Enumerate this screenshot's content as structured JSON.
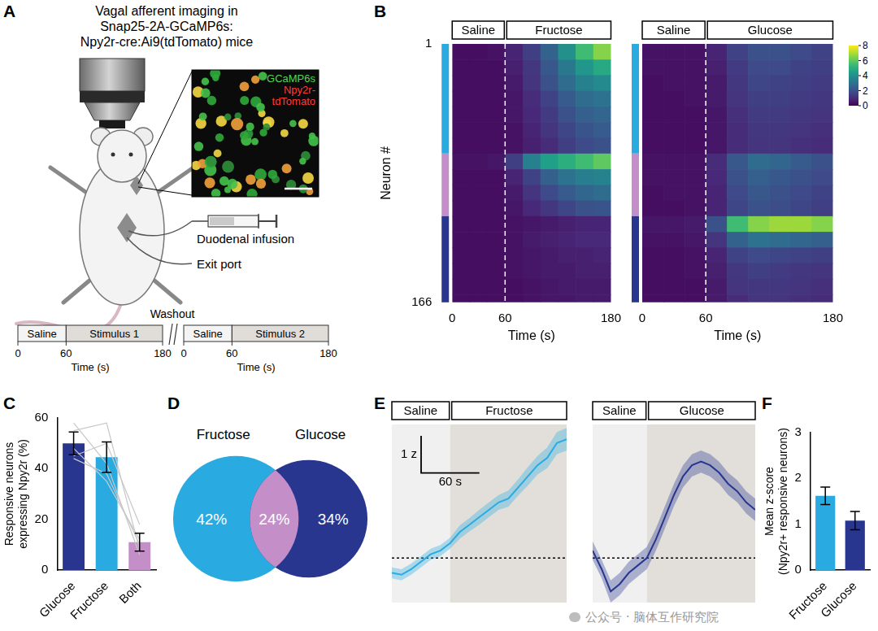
{
  "panel_a": {
    "panel": "A",
    "title": [
      "Vagal afferent imaging in",
      "Snap25-2A-GCaMP6s:",
      "Npy2r-cre:Ai9(tdTomato) mice"
    ],
    "inset_labels": [
      {
        "text": "GCaMP6s",
        "color": "#4cd94c"
      },
      {
        "text": "Npy2r-",
        "color": "#ff3a3a"
      },
      {
        "text": "tdTomato",
        "color": "#ff3a3a"
      }
    ],
    "infusion_label": "Duodenal infusion",
    "exit_label": "Exit port",
    "timeline": {
      "washout_label": "Washout",
      "xlabel": "Time (s)",
      "xlim": [
        0,
        180
      ],
      "xticks": [
        0,
        60,
        180
      ],
      "protocols": [
        [
          {
            "label": "Saline",
            "from": 0,
            "to": 60
          },
          {
            "label": "Stimulus 1",
            "from": 60,
            "to": 180
          }
        ],
        [
          {
            "label": "Saline",
            "from": 0,
            "to": 60
          },
          {
            "label": "Stimulus 2",
            "from": 60,
            "to": 180
          }
        ]
      ]
    }
  },
  "colorbar": {
    "range": [
      0,
      8
    ],
    "ticks": [
      0,
      2,
      4,
      6,
      8
    ]
  },
  "watermark": "公众号 · 脑体互作研究院",
  "chart_data": [
    {
      "panel": "B",
      "type": "heatmap",
      "epochs": [
        {
          "label": "Saline",
          "from": 0,
          "to": 60
        },
        {
          "label": "Fructose",
          "from": 60,
          "to": 180
        }
      ],
      "xlabel": "Time (s)",
      "ylabel": "Neuron #",
      "xlim": [
        0,
        180
      ],
      "xticks": [
        0,
        60,
        180
      ],
      "ylim": [
        1,
        166
      ],
      "yticks": [
        1,
        166
      ],
      "x_edges": [
        0,
        20,
        40,
        60,
        80,
        100,
        120,
        140,
        160,
        180
      ],
      "y_edges": [
        1,
        11,
        21,
        31,
        41,
        51,
        61,
        71,
        81,
        91,
        101,
        111,
        121,
        131,
        141,
        151,
        161,
        166
      ],
      "cells": [
        [
          0.3,
          0.3,
          0.4,
          0.8,
          1.5,
          2.5,
          4.0,
          5.5,
          6.5
        ],
        [
          0.3,
          0.3,
          0.3,
          0.7,
          1.3,
          2.2,
          3.2,
          4.2,
          4.8
        ],
        [
          0.3,
          0.3,
          0.3,
          0.6,
          1.2,
          2.0,
          2.8,
          3.5,
          3.8
        ],
        [
          0.3,
          0.3,
          0.3,
          0.5,
          1.0,
          1.6,
          2.3,
          2.8,
          3.0
        ],
        [
          0.3,
          0.3,
          0.3,
          0.5,
          0.9,
          1.4,
          2.0,
          2.4,
          2.6
        ],
        [
          0.3,
          0.3,
          0.3,
          0.4,
          0.8,
          1.2,
          1.7,
          2.1,
          2.3
        ],
        [
          0.3,
          0.3,
          0.3,
          0.4,
          0.7,
          1.0,
          1.5,
          1.8,
          2.0
        ],
        [
          0.4,
          0.4,
          0.5,
          1.5,
          3.5,
          4.5,
          5.0,
          5.5,
          6.0
        ],
        [
          0.3,
          0.3,
          0.3,
          0.8,
          1.6,
          2.4,
          3.0,
          3.4,
          3.6
        ],
        [
          0.3,
          0.3,
          0.3,
          0.6,
          1.2,
          1.8,
          2.3,
          2.6,
          2.8
        ],
        [
          0.3,
          0.3,
          0.3,
          0.5,
          0.9,
          1.3,
          1.7,
          2.0,
          2.1
        ],
        [
          0.3,
          0.3,
          0.3,
          0.4,
          0.5,
          0.6,
          0.7,
          0.8,
          0.8
        ],
        [
          0.3,
          0.3,
          0.3,
          0.4,
          0.6,
          0.7,
          0.8,
          0.9,
          0.9
        ],
        [
          0.3,
          0.3,
          0.3,
          0.4,
          0.5,
          0.6,
          0.7,
          0.7,
          0.8
        ],
        [
          0.3,
          0.3,
          0.3,
          0.4,
          0.5,
          0.6,
          0.6,
          0.7,
          0.7
        ],
        [
          0.3,
          0.3,
          0.3,
          0.3,
          0.4,
          0.5,
          0.6,
          0.6,
          0.6
        ],
        [
          0.3,
          0.3,
          0.3,
          0.3,
          0.4,
          0.5,
          0.5,
          0.6,
          0.6
        ]
      ],
      "row_groups": [
        {
          "from": 1,
          "to": 71,
          "color": "#29abe2"
        },
        {
          "from": 71,
          "to": 111,
          "color": "#c48fc8"
        },
        {
          "from": 111,
          "to": 166,
          "color": "#28368f"
        }
      ]
    },
    {
      "panel": "B",
      "type": "heatmap",
      "epochs": [
        {
          "label": "Saline",
          "from": 0,
          "to": 60
        },
        {
          "label": "Glucose",
          "from": 60,
          "to": 180
        }
      ],
      "xlabel": "Time (s)",
      "tick_labels": "x",
      "xlim": [
        0,
        180
      ],
      "xticks": [
        0,
        60,
        180
      ],
      "ylim": [
        1,
        166
      ],
      "x_edges": [
        0,
        20,
        40,
        60,
        80,
        100,
        120,
        140,
        160,
        180
      ],
      "y_edges": [
        1,
        11,
        21,
        31,
        41,
        51,
        61,
        71,
        81,
        91,
        101,
        111,
        121,
        131,
        141,
        151,
        161,
        166
      ],
      "cells": [
        [
          0.4,
          0.4,
          0.4,
          0.8,
          1.6,
          2.0,
          2.0,
          1.8,
          1.6
        ],
        [
          0.4,
          0.4,
          0.4,
          0.7,
          1.4,
          1.8,
          1.8,
          1.6,
          1.5
        ],
        [
          0.3,
          0.4,
          0.4,
          0.6,
          1.3,
          1.7,
          1.6,
          1.5,
          1.4
        ],
        [
          0.3,
          0.3,
          0.4,
          0.6,
          1.2,
          1.5,
          1.5,
          1.4,
          1.3
        ],
        [
          0.3,
          0.3,
          0.3,
          0.5,
          1.1,
          1.4,
          1.4,
          1.3,
          1.2
        ],
        [
          0.3,
          0.3,
          0.3,
          0.5,
          1.0,
          1.3,
          1.3,
          1.2,
          1.1
        ],
        [
          0.3,
          0.3,
          0.3,
          0.5,
          1.0,
          1.2,
          1.2,
          1.1,
          1.0
        ],
        [
          0.4,
          0.4,
          0.4,
          1.0,
          2.2,
          2.8,
          2.6,
          2.3,
          2.0
        ],
        [
          0.4,
          0.4,
          0.4,
          0.9,
          2.0,
          2.4,
          2.2,
          2.0,
          1.8
        ],
        [
          0.3,
          0.4,
          0.4,
          0.8,
          1.8,
          2.2,
          2.0,
          1.8,
          1.6
        ],
        [
          0.3,
          0.3,
          0.4,
          0.8,
          1.7,
          2.0,
          1.9,
          1.7,
          1.5
        ],
        [
          0.5,
          0.5,
          0.6,
          2.0,
          5.5,
          6.5,
          6.8,
          6.8,
          6.5
        ],
        [
          0.4,
          0.4,
          0.5,
          1.2,
          2.5,
          3.0,
          2.8,
          2.6,
          2.4
        ],
        [
          0.3,
          0.3,
          0.4,
          0.8,
          1.6,
          1.8,
          1.7,
          1.6,
          1.5
        ],
        [
          0.3,
          0.3,
          0.4,
          0.7,
          1.3,
          1.5,
          1.4,
          1.3,
          1.2
        ],
        [
          0.3,
          0.3,
          0.3,
          0.6,
          1.2,
          1.3,
          1.3,
          1.2,
          1.1
        ],
        [
          0.3,
          0.3,
          0.3,
          0.6,
          1.0,
          1.2,
          1.2,
          1.1,
          1.0
        ]
      ],
      "row_groups": [
        {
          "from": 1,
          "to": 71,
          "color": "#29abe2"
        },
        {
          "from": 71,
          "to": 111,
          "color": "#c48fc8"
        },
        {
          "from": 111,
          "to": 166,
          "color": "#28368f"
        }
      ]
    },
    {
      "panel": "C",
      "type": "bar",
      "categories": [
        "Glucose",
        "Fructose",
        "Both"
      ],
      "values": [
        50,
        44.5,
        11
      ],
      "errors": [
        4.5,
        6,
        3.5
      ],
      "colors": [
        "#28368f",
        "#29abe2",
        "#c48fc8"
      ],
      "ylabel": [
        "Responsive neurons",
        "expressing Npy2r (%)"
      ],
      "ylim": [
        0,
        60
      ],
      "yticks": [
        0,
        20,
        40,
        60
      ],
      "individual": {
        "color": "#c8c8c8",
        "values": [
          [
            55,
            58,
            8
          ],
          [
            48,
            35,
            12
          ],
          [
            58,
            42,
            6
          ],
          [
            45,
            50,
            18
          ],
          [
            44,
            38,
            10
          ]
        ]
      }
    },
    {
      "panel": "D",
      "type": "venn",
      "set_labels": [
        "Fructose",
        "Glucose"
      ],
      "values": [
        42,
        24,
        34
      ],
      "value_labels": [
        "42%",
        "24%",
        "34%"
      ],
      "colors": [
        "#29abe2",
        "#c48fc8",
        "#28368f"
      ]
    },
    {
      "panel": "E",
      "type": "line",
      "epochs": [
        {
          "label": "Saline",
          "from": 0,
          "to": 60
        },
        {
          "label": "Fructose",
          "from": 60,
          "to": 180
        }
      ],
      "xlim": [
        0,
        180
      ],
      "ylim": [
        -1.2,
        3.6
      ],
      "tick_labels": false,
      "baseline": 0,
      "scale_bar": {
        "x": 60,
        "x_label": "60 s",
        "y": 1,
        "y_label": "1 z"
      },
      "color": "#29abe2",
      "x": [
        0,
        10,
        20,
        30,
        40,
        50,
        60,
        70,
        80,
        90,
        100,
        110,
        120,
        130,
        140,
        150,
        160,
        170,
        180
      ],
      "values": [
        -0.4,
        -0.45,
        -0.3,
        -0.1,
        0.1,
        0.2,
        0.4,
        0.7,
        0.9,
        1.1,
        1.3,
        1.5,
        1.6,
        1.9,
        2.2,
        2.5,
        2.7,
        3.1,
        3.2
      ],
      "errors": [
        0.15,
        0.15,
        0.15,
        0.15,
        0.15,
        0.15,
        0.15,
        0.18,
        0.18,
        0.2,
        0.2,
        0.2,
        0.22,
        0.22,
        0.25,
        0.25,
        0.28,
        0.3,
        0.3
      ]
    },
    {
      "panel": "E",
      "type": "line",
      "epochs": [
        {
          "label": "Saline",
          "from": 0,
          "to": 60
        },
        {
          "label": "Glucose",
          "from": 60,
          "to": 180
        }
      ],
      "xlim": [
        0,
        180
      ],
      "ylim": [
        -1.2,
        3.6
      ],
      "tick_labels": false,
      "baseline": 0,
      "color": "#28368f",
      "x": [
        0,
        10,
        20,
        30,
        40,
        50,
        60,
        70,
        80,
        90,
        100,
        110,
        120,
        130,
        140,
        150,
        160,
        170,
        180
      ],
      "values": [
        0.2,
        -0.3,
        -0.9,
        -0.7,
        -0.4,
        -0.2,
        0.0,
        0.5,
        1.1,
        1.7,
        2.2,
        2.5,
        2.6,
        2.5,
        2.3,
        2.0,
        1.8,
        1.5,
        1.3
      ],
      "errors": [
        0.25,
        0.25,
        0.3,
        0.3,
        0.3,
        0.3,
        0.3,
        0.3,
        0.3,
        0.3,
        0.3,
        0.3,
        0.3,
        0.3,
        0.3,
        0.3,
        0.3,
        0.3,
        0.3
      ]
    },
    {
      "panel": "F",
      "type": "bar",
      "categories": [
        "Fructose",
        "Glucose"
      ],
      "values": [
        1.62,
        1.08
      ],
      "errors": [
        0.19,
        0.2
      ],
      "colors": [
        "#29abe2",
        "#28368f"
      ],
      "ylabel": [
        "Mean z-score",
        "(Npy2r+ responsive neurons)"
      ],
      "ylim": [
        0,
        3
      ],
      "yticks": [
        0,
        1,
        2,
        3
      ]
    }
  ]
}
